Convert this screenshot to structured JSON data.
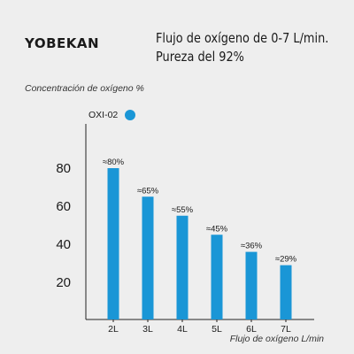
{
  "brand": "YOBEKAN",
  "title_line1": "Flujo de oxígeno de 0-7 L/min.",
  "title_line2": "Pureza del 92%",
  "chart_data": {
    "type": "bar",
    "ylabel": "Concentración de oxígeno %",
    "xlabel": "Flujo de oxígeno L/min",
    "categories": [
      "2L",
      "3L",
      "4L",
      "5L",
      "6L",
      "7L"
    ],
    "series": [
      {
        "name": "OXI-02",
        "values": [
          80,
          65,
          55,
          45,
          36,
          29
        ],
        "labels": [
          "≈80%",
          "≈65%",
          "≈55%",
          "≈45%",
          "≈36%",
          "≈29%"
        ]
      }
    ],
    "yticks": [
      20,
      40,
      60,
      80
    ],
    "ylim": [
      0,
      100
    ],
    "legend": "top-left",
    "bar_color": "#1a96d6",
    "grid": false
  }
}
